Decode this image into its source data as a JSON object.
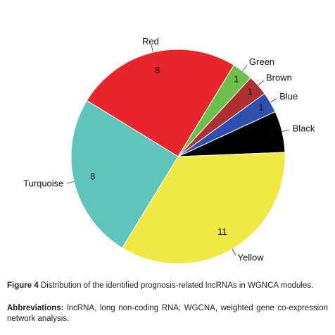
{
  "chart_data": {
    "type": "pie",
    "categories": [
      "Red",
      "Green",
      "Brown",
      "Blue",
      "Black",
      "Yellow",
      "Turquoise"
    ],
    "values": [
      8,
      1,
      1,
      1,
      2,
      11,
      8
    ],
    "colors": [
      "#e8252b",
      "#6bbf4b",
      "#ad2f30",
      "#2f4fae",
      "#000000",
      "#efe845",
      "#5fc4ba"
    ]
  },
  "caption": {
    "label": "Figure 4",
    "text": "Distribution of the identified prognosis-related lncRNAs in WGNCA modules."
  },
  "abbreviations": {
    "label": "Abbreviations:",
    "text": "lncRNA, long non-coding RNA; WGCNA, weighted gene co-expression network analysis."
  }
}
